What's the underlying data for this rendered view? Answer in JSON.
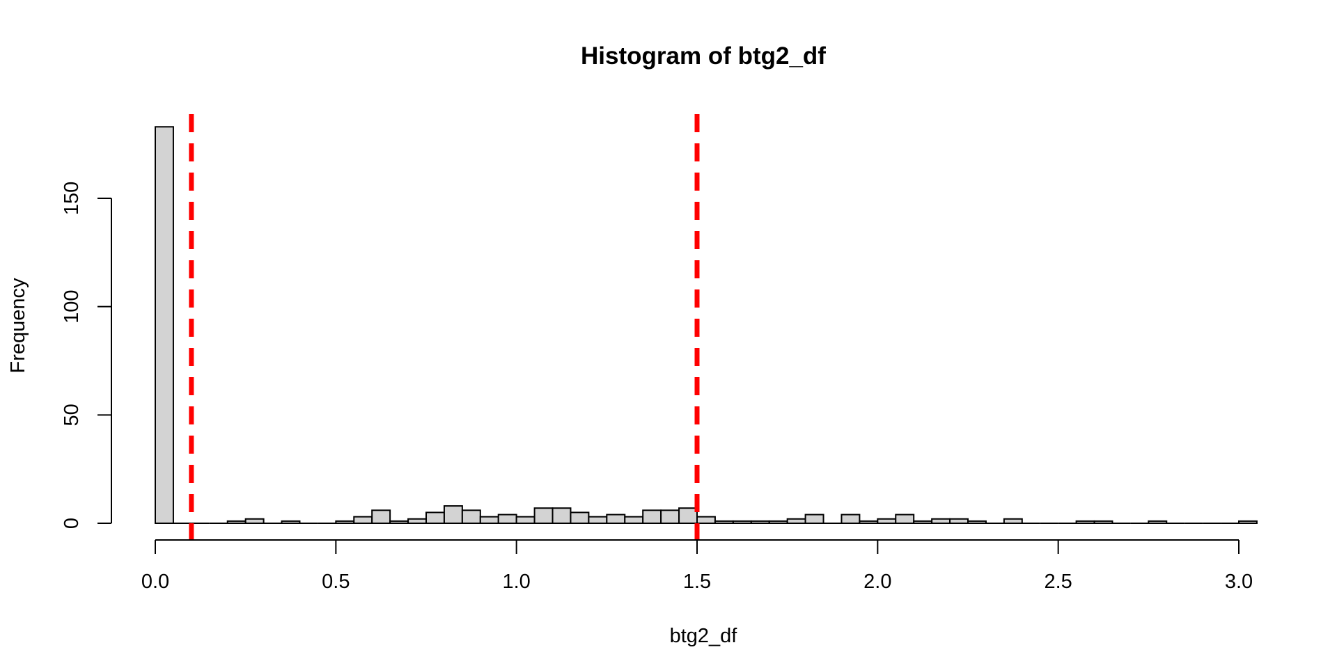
{
  "chart_data": {
    "type": "bar",
    "title": "Histogram of btg2_df",
    "xlabel": "btg2_df",
    "ylabel": "Frequency",
    "bin_width": 0.05,
    "bin_start": 0.0,
    "x_ticks": [
      0.0,
      0.5,
      1.0,
      1.5,
      2.0,
      2.5,
      3.0
    ],
    "x_tick_labels": [
      "0.0",
      "0.5",
      "1.0",
      "1.5",
      "2.0",
      "2.5",
      "3.0"
    ],
    "y_ticks": [
      0,
      50,
      100,
      150
    ],
    "y_tick_labels": [
      "0",
      "50",
      "100",
      "150"
    ],
    "xlim": [
      0.0,
      3.05
    ],
    "ylim": [
      0,
      183
    ],
    "bar_fill": "#d3d3d3",
    "bar_stroke": "#000000",
    "values": [
      183,
      0,
      0,
      0,
      1,
      2,
      0,
      1,
      0,
      0,
      1,
      3,
      6,
      1,
      2,
      5,
      8,
      6,
      3,
      4,
      3,
      7,
      7,
      5,
      3,
      4,
      3,
      6,
      6,
      7,
      3,
      1,
      1,
      1,
      1,
      2,
      4,
      0,
      4,
      1,
      2,
      4,
      1,
      2,
      2,
      1,
      0,
      2,
      0,
      0,
      0,
      1,
      1,
      0,
      0,
      1,
      0,
      0,
      0,
      0,
      1
    ],
    "reference_lines": [
      {
        "x": 0.1,
        "color": "#ff0000",
        "style": "dashed"
      },
      {
        "x": 1.5,
        "color": "#ff0000",
        "style": "dashed"
      }
    ],
    "grid": false,
    "legend": "none"
  }
}
